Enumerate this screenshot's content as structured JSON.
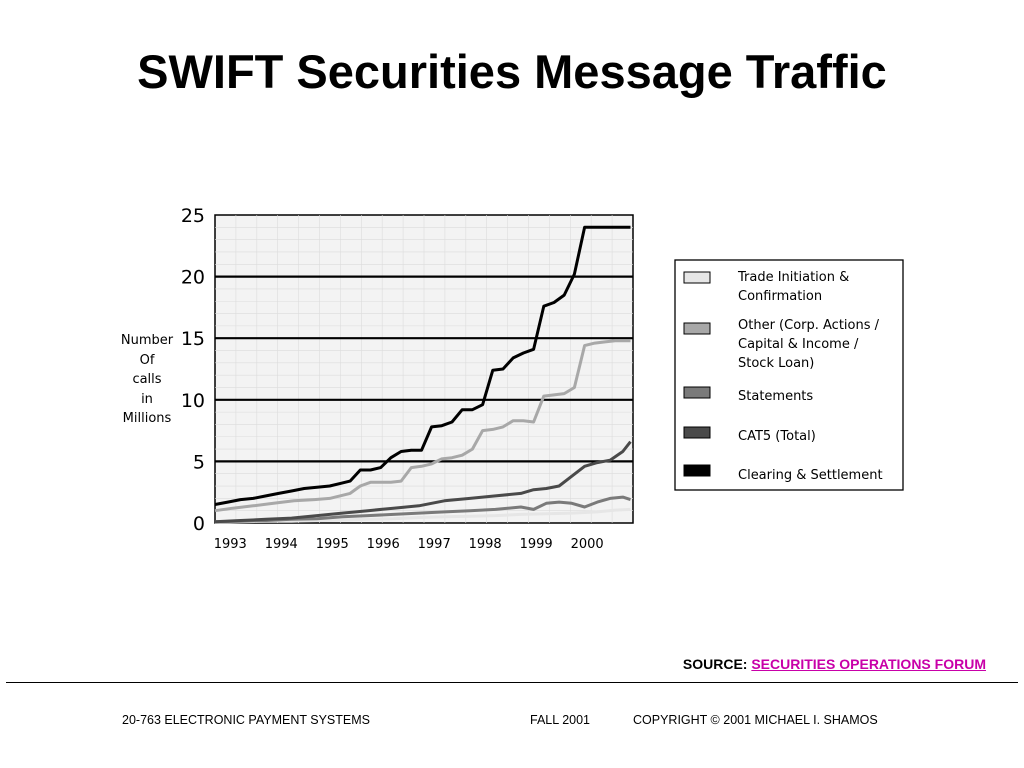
{
  "slide": {
    "title": "SWIFT Securities Message Traffic",
    "source_label": "SOURCE:",
    "source_link": "SECURITIES OPERATIONS FORUM",
    "footer_left": "20-763 ELECTRONIC PAYMENT SYSTEMS",
    "footer_mid": "FALL 2001",
    "footer_right": "COPYRIGHT © 2001 MICHAEL I. SHAMOS"
  },
  "chart_data": {
    "type": "line",
    "title": "",
    "ylabel_lines": [
      "Number",
      "Of",
      "calls",
      "in",
      "Millions"
    ],
    "xlabel": "",
    "x_ticks": [
      "1993",
      "1994",
      "1995",
      "1996",
      "1997",
      "1998",
      "1999",
      "2000"
    ],
    "x_range": [
      1992.75,
      2000.95
    ],
    "ylim": [
      0,
      25
    ],
    "y_ticks": [
      0,
      5,
      10,
      15,
      20,
      25
    ],
    "grid": "horizontal lines at 5, 10, 15, 20",
    "legend_position": "right",
    "series": [
      {
        "name": "Trade Initiation & Confirmation",
        "color": "#e6e6e6",
        "x": [
          1992.75,
          1993.25,
          1993.75,
          1994.25,
          1994.75,
          1995.25,
          1995.75,
          1996.25,
          1996.75,
          1997.25,
          1997.75,
          1998.25,
          1998.75,
          1999.25,
          1999.75,
          2000.25,
          2000.6,
          2000.9
        ],
        "y": [
          0.05,
          0.1,
          0.15,
          0.15,
          0.2,
          0.25,
          0.3,
          0.35,
          0.45,
          0.5,
          0.55,
          0.6,
          0.7,
          0.75,
          0.8,
          0.9,
          1.05,
          1.1
        ]
      },
      {
        "name": "Other (Corp. Actions / Capital & Income / Stock Loan)",
        "color": "#a8a8a8",
        "x": [
          1992.75,
          1993.1,
          1993.5,
          1993.9,
          1994.3,
          1994.7,
          1995.0,
          1995.2,
          1995.4,
          1995.6,
          1995.8,
          1996.0,
          1996.2,
          1996.4,
          1996.6,
          1996.8,
          1997.0,
          1997.2,
          1997.4,
          1997.6,
          1997.8,
          1998.0,
          1998.2,
          1998.4,
          1998.6,
          1998.8,
          1999.0,
          1999.2,
          1999.4,
          1999.6,
          1999.8,
          2000.0,
          2000.2,
          2000.4,
          2000.6,
          2000.8,
          2000.9
        ],
        "y": [
          1.0,
          1.2,
          1.4,
          1.6,
          1.8,
          1.9,
          2.0,
          2.2,
          2.4,
          3.0,
          3.3,
          3.3,
          3.3,
          3.4,
          4.5,
          4.6,
          4.8,
          5.2,
          5.3,
          5.5,
          6.0,
          7.5,
          7.6,
          7.8,
          8.3,
          8.3,
          8.2,
          10.3,
          10.4,
          10.5,
          11.0,
          14.4,
          14.6,
          14.7,
          14.8,
          14.8,
          14.8
        ]
      },
      {
        "name": "Statements",
        "color": "#7a7a7a",
        "x": [
          1992.75,
          1993.25,
          1993.75,
          1994.25,
          1994.75,
          1995.25,
          1995.75,
          1996.25,
          1996.75,
          1997.25,
          1997.75,
          1998.25,
          1998.75,
          1999.0,
          1999.25,
          1999.5,
          1999.75,
          2000.0,
          2000.25,
          2000.5,
          2000.75,
          2000.9
        ],
        "y": [
          0.1,
          0.15,
          0.2,
          0.3,
          0.35,
          0.5,
          0.6,
          0.7,
          0.8,
          0.9,
          1.0,
          1.1,
          1.3,
          1.1,
          1.6,
          1.7,
          1.6,
          1.3,
          1.7,
          2.0,
          2.1,
          1.9
        ]
      },
      {
        "name": "CAT5 (Total)",
        "color": "#4a4a4a",
        "x": [
          1992.75,
          1993.25,
          1993.75,
          1994.25,
          1994.75,
          1995.25,
          1995.75,
          1996.25,
          1996.75,
          1997.25,
          1997.75,
          1998.25,
          1998.75,
          1999.0,
          1999.25,
          1999.5,
          1999.75,
          2000.0,
          2000.25,
          2000.5,
          2000.75,
          2000.9
        ],
        "y": [
          0.1,
          0.2,
          0.3,
          0.4,
          0.6,
          0.8,
          1.0,
          1.2,
          1.4,
          1.8,
          2.0,
          2.2,
          2.4,
          2.7,
          2.8,
          3.0,
          3.8,
          4.6,
          4.9,
          5.1,
          5.8,
          6.6
        ]
      },
      {
        "name": "Clearing & Settlement",
        "color": "#000000",
        "x": [
          1992.75,
          1993.0,
          1993.25,
          1993.5,
          1993.75,
          1994.0,
          1994.25,
          1994.5,
          1994.75,
          1995.0,
          1995.2,
          1995.4,
          1995.6,
          1995.8,
          1996.0,
          1996.2,
          1996.4,
          1996.6,
          1996.8,
          1997.0,
          1997.2,
          1997.4,
          1997.6,
          1997.8,
          1998.0,
          1998.2,
          1998.4,
          1998.6,
          1998.8,
          1999.0,
          1999.2,
          1999.4,
          1999.6,
          1999.8,
          2000.0,
          2000.2,
          2000.4,
          2000.6,
          2000.8,
          2000.9
        ],
        "y": [
          1.5,
          1.7,
          1.9,
          2.0,
          2.2,
          2.4,
          2.6,
          2.8,
          2.9,
          3.0,
          3.2,
          3.4,
          4.3,
          4.3,
          4.5,
          5.3,
          5.8,
          5.9,
          5.9,
          7.8,
          7.9,
          8.2,
          9.2,
          9.2,
          9.6,
          12.4,
          12.5,
          13.4,
          13.8,
          14.1,
          17.6,
          17.9,
          18.5,
          20.2,
          24.0,
          24.0,
          24.0,
          24.0,
          24.0,
          24.0
        ]
      }
    ]
  }
}
